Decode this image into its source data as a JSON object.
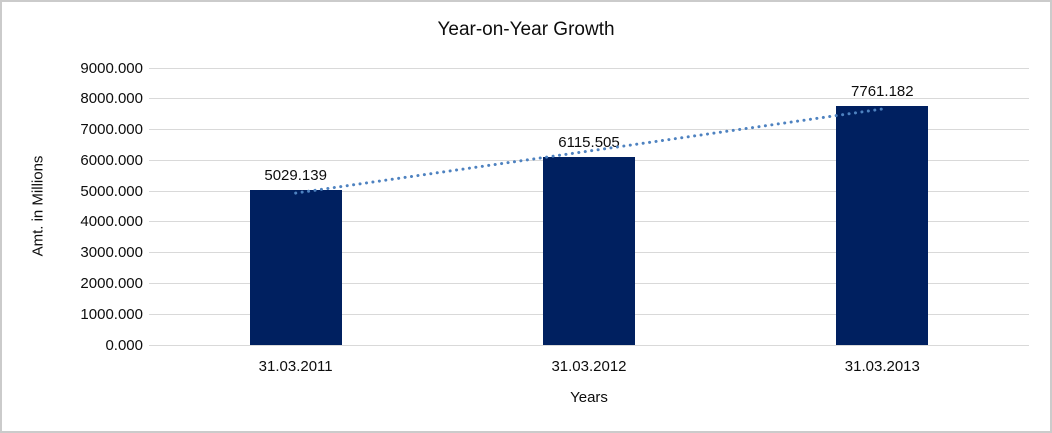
{
  "chart_data": {
    "type": "bar",
    "title": "Year-on-Year Growth",
    "xlabel": "Years",
    "ylabel": "Amt. in Millions",
    "categories": [
      "31.03.2011",
      "31.03.2012",
      "31.03.2013"
    ],
    "values": [
      5029.139,
      6115.505,
      7761.182
    ],
    "value_labels": [
      "5029.139",
      "6115.505",
      "7761.182"
    ],
    "ylim": [
      0,
      9000
    ],
    "ytick_step": 1000,
    "ytick_labels": [
      "0.000",
      "1000.000",
      "2000.000",
      "3000.000",
      "4000.000",
      "5000.000",
      "6000.000",
      "7000.000",
      "8000.000",
      "9000.000"
    ],
    "grid": true,
    "legend": false,
    "trendline": {
      "type": "linear",
      "style": "dotted"
    },
    "colors": {
      "bar": "#002060",
      "trendline": "#4e82c0",
      "gridline": "#d9d9d9",
      "text": "#0d0d0d",
      "frame_border": "#cbcbcb",
      "background": "#ffffff"
    }
  }
}
